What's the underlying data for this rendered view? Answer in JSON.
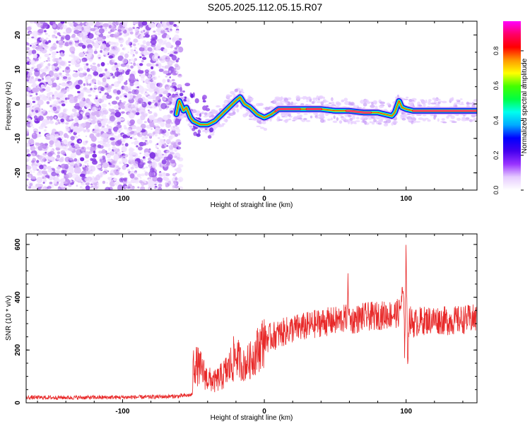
{
  "title": "S205.2025.112.05.15.R07",
  "colors": {
    "snr_line": "#e82828",
    "scatter_noise": "#8a3de6",
    "colormap": [
      "#ffffff",
      "#e6ccff",
      "#9933ff",
      "#4400ee",
      "#0000ff",
      "#00aaff",
      "#00ffee",
      "#00ff44",
      "#44ff00",
      "#ffff00",
      "#ff9900",
      "#ff0000",
      "#ff0066",
      "#ff00ff"
    ]
  },
  "chart_data": [
    {
      "type": "heatmap",
      "xlabel": "Height of straight line (km)",
      "ylabel": "Frequency (Hz)",
      "xlim": [
        -168,
        150
      ],
      "ylim": [
        -25,
        24
      ],
      "xticks": [
        -100,
        0,
        100
      ],
      "xtick_labels": [
        "-100",
        "0",
        "100"
      ],
      "yticks": [
        20,
        10,
        0,
        -10,
        -20
      ],
      "ytick_labels": [
        "20",
        "10",
        "0",
        "-10",
        "-20"
      ],
      "grid": false,
      "noise_region_x": [
        -168,
        -62
      ],
      "ridge": {
        "x": [
          -62,
          -60,
          -57,
          -55,
          -52,
          -50,
          -45,
          -40,
          -35,
          -30,
          -25,
          -20,
          -17,
          -14,
          -10,
          -5,
          0,
          5,
          10,
          20,
          30,
          40,
          50,
          60,
          70,
          80,
          90,
          92,
          95,
          97,
          100,
          105,
          110,
          120,
          130,
          140,
          150
        ],
        "freq": [
          -3,
          1,
          -2,
          -1,
          -4,
          -5,
          -6,
          -6,
          -5,
          -3,
          -1,
          1,
          2,
          0,
          -1,
          -3,
          -4,
          -3,
          -1.5,
          -1.5,
          -1.5,
          -1.5,
          -2,
          -2,
          -2.5,
          -2.5,
          -3.5,
          -2.5,
          1,
          -1,
          -1.5,
          -2,
          -2,
          -2,
          -2,
          -2,
          -2
        ]
      },
      "colorbar": {
        "label": "Normalized spectral amplitude",
        "range": [
          0.0,
          0.97
        ],
        "ticks": [
          0.0,
          0.2,
          0.4,
          0.6,
          0.8
        ],
        "tick_labels": [
          "0.0",
          "0.2",
          "0.4",
          "0.6",
          "0.8"
        ]
      }
    },
    {
      "type": "line",
      "xlabel": "Height of straight line (km)",
      "ylabel": "SNR (10 * v/v)",
      "xlim": [
        -168,
        150
      ],
      "ylim": [
        0,
        640
      ],
      "xticks": [
        -100,
        0,
        100
      ],
      "xtick_labels": [
        "-100",
        "0",
        "100"
      ],
      "yticks": [
        0,
        200,
        400,
        600
      ],
      "ytick_labels": [
        "0",
        "200",
        "400",
        "600"
      ],
      "grid": false,
      "series": [
        {
          "x": [
            -168,
            -120,
            -80,
            -60,
            -51,
            -50,
            -45,
            -40,
            -35,
            -30,
            -25,
            -20,
            -15,
            -10,
            -5,
            0,
            10,
            20,
            30,
            40,
            50,
            58,
            59,
            60,
            70,
            80,
            90,
            95,
            98,
            99,
            100,
            101,
            102,
            105,
            110,
            120,
            130,
            140,
            150
          ],
          "values": [
            20,
            20,
            22,
            25,
            30,
            150,
            130,
            90,
            80,
            100,
            130,
            180,
            140,
            160,
            200,
            240,
            260,
            280,
            290,
            305,
            310,
            320,
            440,
            310,
            325,
            330,
            335,
            340,
            420,
            200,
            600,
            130,
            320,
            300,
            310,
            315,
            310,
            315,
            320
          ]
        }
      ]
    }
  ]
}
